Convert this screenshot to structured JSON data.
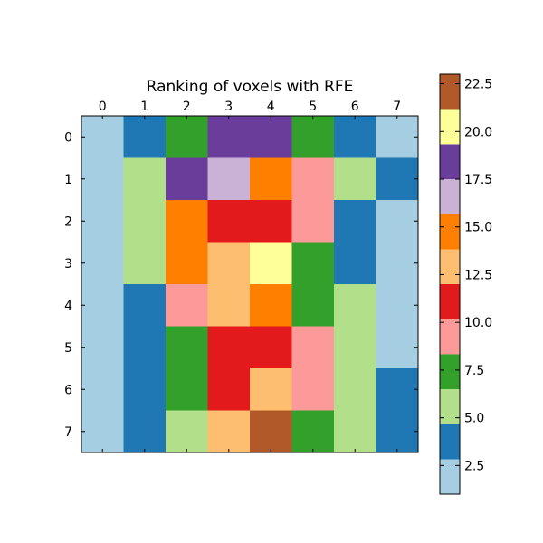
{
  "chart_data": {
    "type": "heatmap",
    "title": "Ranking of voxels with RFE",
    "x_tick_labels": [
      "0",
      "1",
      "2",
      "3",
      "4",
      "5",
      "6",
      "7"
    ],
    "y_tick_labels": [
      "0",
      "1",
      "2",
      "3",
      "4",
      "5",
      "6",
      "7"
    ],
    "x_ticks_position": "top",
    "values": [
      [
        1,
        3,
        7,
        19,
        18,
        7,
        4,
        2
      ],
      [
        2,
        5,
        18,
        17,
        14,
        10,
        5,
        3
      ],
      [
        2,
        5,
        15,
        11,
        11,
        9,
        4,
        2
      ],
      [
        2,
        6,
        14,
        12,
        21,
        8,
        4,
        1
      ],
      [
        1,
        4,
        9,
        13,
        15,
        8,
        5,
        1
      ],
      [
        1,
        4,
        7,
        11,
        11,
        9,
        6,
        1
      ],
      [
        2,
        3,
        7,
        11,
        13,
        10,
        6,
        3
      ],
      [
        1,
        3,
        6,
        13,
        23,
        8,
        5,
        3
      ]
    ],
    "colormap": "Paired",
    "colormap_stops": [
      "#a6cee3",
      "#1f78b4",
      "#b2df8a",
      "#33a02c",
      "#fb9a99",
      "#e31a1c",
      "#fdbf6f",
      "#ff7f00",
      "#cab2d6",
      "#6a3d9a",
      "#ffff99",
      "#b15928"
    ],
    "vmin": 1,
    "vmax": 23,
    "colorbar": {
      "position": "right",
      "tick_values": [
        2.5,
        5.0,
        7.5,
        10.0,
        12.5,
        15.0,
        17.5,
        20.0,
        22.5
      ],
      "tick_labels": [
        "2.5",
        "5.0",
        "7.5",
        "10.0",
        "12.5",
        "15.0",
        "17.5",
        "20.0",
        "22.5"
      ]
    },
    "grid": false
  }
}
